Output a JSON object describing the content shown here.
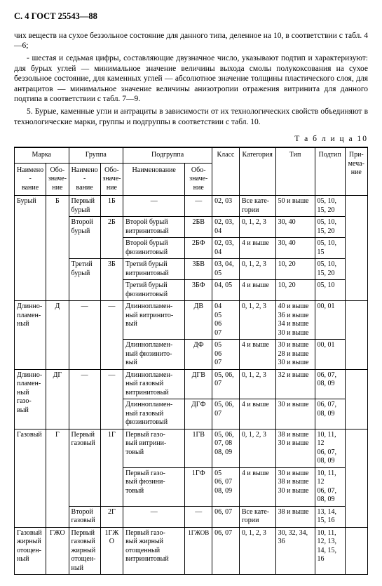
{
  "page_header": "С. 4  ГОСТ 25543—88",
  "para1": "чих веществ на сухое беззольное состояние для данного типа, деленное на 10, в соответствии с табл. 4—6;",
  "para2": "- шестая и седьмая цифры, составляющие двузначное число, указывают подтип и характеризуют: для бурых углей — минимальное значение величины выхода смолы полукоксования на сухое беззольное состояние, для каменных углей — абсолютное значение толщины пластического слоя, для антрацитов — минимальное значение величины анизотропии отражения витринита для данного подтипа в соответствии с табл. 7—9.",
  "para3": "5. Бурые, каменные угли и антрациты в зависимости от их технологических свойств объединяют в технологические марки, группы и подгруппы в соответствии с табл. 10.",
  "table_caption": "Т а б л и ц а   10",
  "hdr": {
    "marka": "Марка",
    "gruppa": "Группа",
    "podgruppa": "Подгруппа",
    "name": "Наимено-\nвание",
    "obo": "Обо-\nзначе-\nние",
    "name2": "Наименование",
    "klass": "Класс",
    "kat": "Категория",
    "tip": "Тип",
    "podtip": "Подтип",
    "prim": "При-\nмеча-\nние"
  },
  "r": {
    "bur": {
      "n": "Бурый",
      "o": "Б",
      "g1n": "Первый бурый",
      "g1o": "1Б",
      "g1pn": "—",
      "g1po": "—",
      "g1k": "02, 03",
      "g1c": "Все кате-\nгории",
      "g1t": "50 и выше",
      "g1p": "05, 10, 15, 20",
      "g2n": "Второй бурый",
      "g2o": "2Б",
      "g2a_pn": "Второй бурый витринитовый",
      "g2a_po": "2БВ",
      "g2a_k": "02, 03, 04",
      "g2a_c": "0, 1, 2, 3",
      "g2a_t": "30, 40",
      "g2a_p": "05, 10, 15, 20",
      "g2b_pn": "Второй бурый фюзинитовый",
      "g2b_po": "2БФ",
      "g2b_k": "02, 03, 04",
      "g2b_c": "4 и выше",
      "g2b_t": "30, 40",
      "g2b_p": "05, 10, 15",
      "g3n": "Третий бурый",
      "g3o": "3Б",
      "g3a_pn": "Третий бурый витринитовый",
      "g3a_po": "3БВ",
      "g3a_k": "03, 04, 05",
      "g3a_c": "0, 1, 2, 3",
      "g3a_t": "10, 20",
      "g3a_p": "05, 10, 15, 20",
      "g3b_pn": "Третий бурый фюзинитовый",
      "g3b_po": "3БФ",
      "g3b_k": "04, 05",
      "g3b_c": "4 и выше",
      "g3b_t": "10, 20",
      "g3b_p": "05, 10"
    },
    "dl": {
      "n": "Длинно-\nпламен-\nный",
      "o": "Д",
      "gn": "—",
      "go": "—",
      "a_pn": "Длиннопламен-\nный витринито-\nвый",
      "a_po": "ДВ",
      "a_k": "04\n05\n06\n07",
      "a_c": "0, 1, 2, 3",
      "a_t": "40 и выше\n36 и выше\n34 и выше\n30 и выше",
      "a_p": "00, 01",
      "b_pn": "Длиннопламен-\nный фюзинито-\nвый",
      "b_po": "ДФ",
      "b_k": "05\n06\n07",
      "b_c": "4 и выше",
      "b_t": "30 и выше\n28 и выше\n30 и выше",
      "b_p": "00, 01"
    },
    "dlg": {
      "n": "Длинно-\nпламен-\nный газо-\nвый",
      "o": "ДГ",
      "gn": "—",
      "go": "—",
      "a_pn": "Длиннопламен-\nный газовый витринитовый",
      "a_po": "ДГВ",
      "a_k": "05, 06, 07",
      "a_c": "0, 1, 2, 3",
      "a_t": "32 и выше",
      "a_p": "06, 07, 08, 09",
      "b_pn": "Длиннопламен-\nный газовый фюзинитовый",
      "b_po": "ДГФ",
      "b_k": "05, 06, 07",
      "b_c": "4 и выше",
      "b_t": "30 и выше",
      "b_p": "06, 07, 08, 09"
    },
    "gaz": {
      "n": "Газовый",
      "o": "Г",
      "g1n": "Первый газовый",
      "g1o": "1Г",
      "g1a_pn": "Первый газо-\nвый витрини-\nтовый",
      "g1a_po": "1ГВ",
      "g1a_k": "05, 06, 07, 08 08, 09",
      "g1a_c": "0, 1, 2, 3",
      "g1a_t": "38 и выше\n30 и выше",
      "g1a_p": "10, 11, 12\n06, 07, 08, 09",
      "g1b_pn": "Первый газо-\nвый фюзини-\nтовый",
      "g1b_po": "1ГФ",
      "g1b_k": "05\n06, 07\n08, 09",
      "g1b_c": "4 и выше",
      "g1b_t": "30 и выше\n38 и выше\n30 и выше",
      "g1b_p": "10, 11, 12\n06, 07, 08, 09",
      "g2n": "Второй газовый",
      "g2o": "2Г",
      "g2pn": "—",
      "g2po": "—",
      "g2k": "06, 07",
      "g2c": "Все кате-\nгории",
      "g2t": "38 и выше",
      "g2p": "13, 14, 15, 16"
    },
    "gzo": {
      "n": "Газовый жирный отощен-\nный",
      "o": "ГЖО",
      "gn": "Первый газовый жирный отощен-\nный",
      "go": "1ГЖО",
      "pn": "Первый газо-\nвый жирный отощенный витринитовый",
      "po": "1ГЖОВ",
      "k": "06, 07",
      "c": "0, 1, 2, 3",
      "t": "30, 32, 34, 36",
      "p": "10, 11, 12, 13, 14, 15, 16"
    }
  }
}
